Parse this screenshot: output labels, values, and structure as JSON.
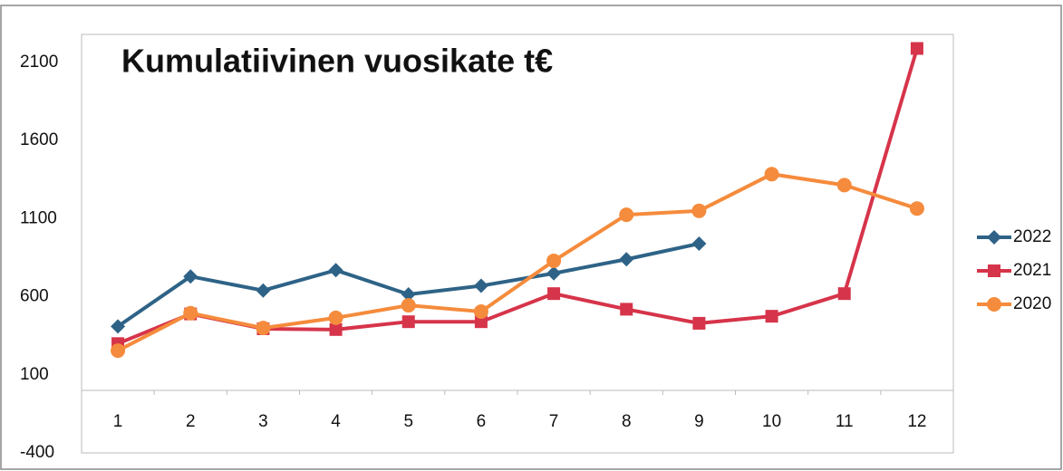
{
  "chart_data": {
    "type": "line",
    "title": "Kumulatiivinen vuosikate t€",
    "categories": [
      "1",
      "2",
      "3",
      "4",
      "5",
      "6",
      "7",
      "8",
      "9",
      "10",
      "11",
      "12"
    ],
    "series": [
      {
        "name": "2022",
        "color": "#2e6387",
        "marker": "diamond",
        "values": [
          410,
          730,
          640,
          770,
          615,
          670,
          750,
          840,
          940,
          null,
          null,
          null
        ]
      },
      {
        "name": "2021",
        "color": "#d6344a",
        "marker": "square",
        "values": [
          300,
          490,
          395,
          390,
          440,
          440,
          620,
          520,
          430,
          475,
          620,
          2190
        ]
      },
      {
        "name": "2020",
        "color": "#f58b3c",
        "marker": "circle",
        "values": [
          255,
          495,
          400,
          465,
          545,
          505,
          830,
          1125,
          1150,
          1385,
          1315,
          1165
        ]
      }
    ],
    "ylim": [
      -400,
      2280
    ],
    "yticks": [
      -400,
      100,
      600,
      1100,
      1600,
      2100
    ],
    "grid": false,
    "legend": "right"
  }
}
